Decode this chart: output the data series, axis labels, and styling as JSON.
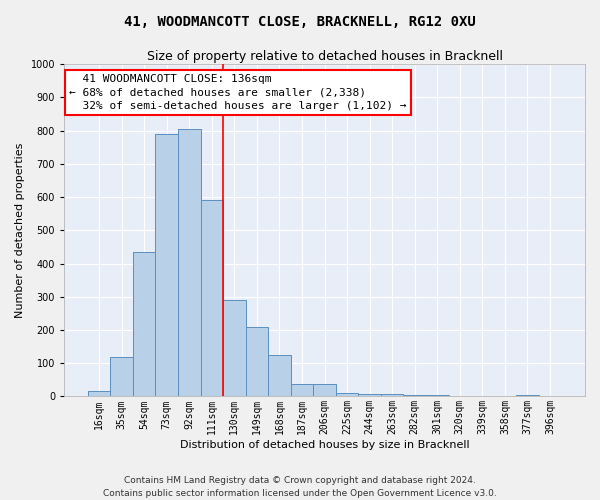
{
  "title": "41, WOODMANCOTT CLOSE, BRACKNELL, RG12 0XU",
  "subtitle": "Size of property relative to detached houses in Bracknell",
  "xlabel": "Distribution of detached houses by size in Bracknell",
  "ylabel": "Number of detached properties",
  "categories": [
    "16sqm",
    "35sqm",
    "54sqm",
    "73sqm",
    "92sqm",
    "111sqm",
    "130sqm",
    "149sqm",
    "168sqm",
    "187sqm",
    "206sqm",
    "225sqm",
    "244sqm",
    "263sqm",
    "282sqm",
    "301sqm",
    "320sqm",
    "339sqm",
    "358sqm",
    "377sqm",
    "396sqm"
  ],
  "values": [
    15,
    120,
    435,
    790,
    805,
    590,
    290,
    210,
    125,
    38,
    38,
    10,
    8,
    8,
    4,
    4,
    0,
    0,
    0,
    5,
    0
  ],
  "bar_color": "#b8d0e8",
  "bar_edge_color": "#5a8fc0",
  "vline_x_index": 6,
  "vline_color": "red",
  "annotation_text": "  41 WOODMANCOTT CLOSE: 136sqm\n← 68% of detached houses are smaller (2,338)\n  32% of semi-detached houses are larger (1,102) →",
  "annotation_box_color": "red",
  "ylim": [
    0,
    1000
  ],
  "yticks": [
    0,
    100,
    200,
    300,
    400,
    500,
    600,
    700,
    800,
    900,
    1000
  ],
  "footer_line1": "Contains HM Land Registry data © Crown copyright and database right 2024.",
  "footer_line2": "Contains public sector information licensed under the Open Government Licence v3.0.",
  "background_color": "#e8eef8",
  "grid_color": "#ffffff",
  "title_fontsize": 10,
  "subtitle_fontsize": 9,
  "axis_label_fontsize": 8,
  "tick_fontsize": 7,
  "annotation_fontsize": 8,
  "footer_fontsize": 6.5
}
